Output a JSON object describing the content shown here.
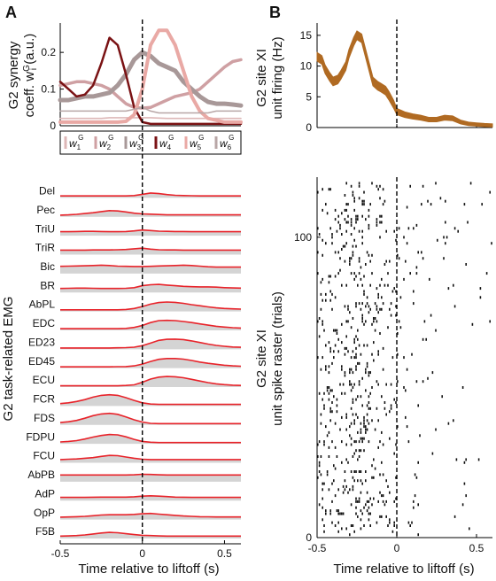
{
  "panels": {
    "a": {
      "letter": "A"
    },
    "b": {
      "letter": "B"
    }
  },
  "colors": {
    "emg_line": "#e8232a",
    "emg_fill": "#d4d4d4",
    "firing": "#b06a22",
    "raster": "#111111",
    "w1": "#ddb7b7",
    "w2": "#cfa0a3",
    "w3": "#a89898",
    "w4": "#7a1214",
    "w5": "#e9a9a5",
    "w6": "#b8a6a6"
  },
  "chart_data": [
    {
      "type": "line",
      "panel": "A-top",
      "ylabel_lines": [
        "G2 synergy",
        "coeff. w",
        "(a.u.)"
      ],
      "ylabel_sub": "G",
      "ylabel_sub2": "i",
      "xlim": [
        -0.5,
        0.6
      ],
      "ylim": [
        0,
        0.28
      ],
      "yticks": [
        "0",
        "0.1",
        "0.2"
      ],
      "ytick_values": [
        0,
        0.1,
        0.2
      ],
      "marker_x": 0,
      "series": [
        {
          "name": "w1G",
          "label_main": "w",
          "label_sub": "1",
          "label_sup": "G",
          "color_key": "w1",
          "x": [
            -0.5,
            -0.45,
            -0.4,
            -0.35,
            -0.3,
            -0.25,
            -0.2,
            -0.15,
            -0.1,
            -0.05,
            0,
            0.05,
            0.1,
            0.15,
            0.2,
            0.25,
            0.3,
            0.35,
            0.4,
            0.45,
            0.5,
            0.55,
            0.6
          ],
          "y": [
            0.02,
            0.02,
            0.02,
            0.02,
            0.02,
            0.02,
            0.022,
            0.022,
            0.022,
            0.022,
            0.022,
            0.022,
            0.021,
            0.02,
            0.02,
            0.02,
            0.02,
            0.02,
            0.02,
            0.02,
            0.02,
            0.02,
            0.02
          ]
        },
        {
          "name": "w2G",
          "label_main": "w",
          "label_sub": "2",
          "label_sup": "G",
          "color_key": "w2",
          "x": [
            -0.5,
            -0.45,
            -0.4,
            -0.35,
            -0.3,
            -0.25,
            -0.2,
            -0.15,
            -0.1,
            -0.05,
            0,
            0.05,
            0.1,
            0.15,
            0.2,
            0.25,
            0.3,
            0.35,
            0.4,
            0.45,
            0.5,
            0.55,
            0.6
          ],
          "y": [
            0.11,
            0.115,
            0.12,
            0.12,
            0.115,
            0.11,
            0.1,
            0.08,
            0.06,
            0.05,
            0.048,
            0.05,
            0.06,
            0.07,
            0.08,
            0.085,
            0.09,
            0.1,
            0.12,
            0.14,
            0.16,
            0.175,
            0.18
          ]
        },
        {
          "name": "w3G",
          "label_main": "w",
          "label_sub": "3",
          "label_sup": "G",
          "color_key": "w3",
          "x": [
            -0.5,
            -0.45,
            -0.4,
            -0.35,
            -0.3,
            -0.25,
            -0.2,
            -0.15,
            -0.1,
            -0.05,
            0,
            0.05,
            0.1,
            0.15,
            0.2,
            0.25,
            0.3,
            0.35,
            0.4,
            0.45,
            0.5,
            0.55,
            0.6
          ],
          "y": [
            0.07,
            0.07,
            0.075,
            0.08,
            0.08,
            0.085,
            0.09,
            0.11,
            0.14,
            0.18,
            0.2,
            0.19,
            0.17,
            0.16,
            0.15,
            0.12,
            0.1,
            0.08,
            0.065,
            0.06,
            0.06,
            0.058,
            0.055
          ]
        },
        {
          "name": "w4G",
          "label_main": "w",
          "label_sub": "4",
          "label_sup": "G",
          "color_key": "w4",
          "x": [
            -0.5,
            -0.45,
            -0.4,
            -0.35,
            -0.3,
            -0.25,
            -0.2,
            -0.15,
            -0.1,
            -0.05,
            0,
            0.05,
            0.1,
            0.15,
            0.2,
            0.25,
            0.3,
            0.35,
            0.4,
            0.45,
            0.5,
            0.55,
            0.6
          ],
          "y": [
            0.12,
            0.1,
            0.08,
            0.085,
            0.11,
            0.17,
            0.24,
            0.22,
            0.14,
            0.05,
            0.01,
            0.005,
            0.005,
            0.005,
            0.005,
            0.005,
            0.005,
            0.005,
            0.005,
            0.005,
            0.005,
            0.005,
            0.005
          ]
        },
        {
          "name": "w5G",
          "label_main": "w",
          "label_sub": "5",
          "label_sup": "G",
          "color_key": "w5",
          "x": [
            -0.5,
            -0.45,
            -0.4,
            -0.35,
            -0.3,
            -0.25,
            -0.2,
            -0.15,
            -0.1,
            -0.05,
            0,
            0.05,
            0.1,
            0.15,
            0.2,
            0.25,
            0.3,
            0.35,
            0.4,
            0.45,
            0.5,
            0.55,
            0.6
          ],
          "y": [
            0.01,
            0.01,
            0.01,
            0.01,
            0.01,
            0.01,
            0.01,
            0.01,
            0.012,
            0.03,
            0.1,
            0.22,
            0.26,
            0.26,
            0.22,
            0.15,
            0.08,
            0.04,
            0.02,
            0.015,
            0.01,
            0.01,
            0.01
          ]
        },
        {
          "name": "w6G",
          "label_main": "w",
          "label_sub": "6",
          "label_sup": "G",
          "color_key": "w6",
          "x": [
            -0.5,
            -0.45,
            -0.4,
            -0.35,
            -0.3,
            -0.25,
            -0.2,
            -0.15,
            -0.1,
            -0.05,
            0,
            0.05,
            0.1,
            0.15,
            0.2,
            0.25,
            0.3,
            0.35,
            0.4,
            0.45,
            0.5,
            0.55,
            0.6
          ],
          "y": [
            0.04,
            0.04,
            0.04,
            0.04,
            0.04,
            0.04,
            0.04,
            0.04,
            0.04,
            0.045,
            0.05,
            0.04,
            0.035,
            0.035,
            0.035,
            0.035,
            0.035,
            0.035,
            0.035,
            0.04,
            0.04,
            0.04,
            0.04
          ]
        }
      ]
    },
    {
      "type": "area",
      "panel": "A-bottom",
      "ylabel": "G2 task-related EMG",
      "xlabel": "Time relative to liftoff (s)",
      "xlim": [
        -0.5,
        0.6
      ],
      "xticks": [
        "-0.5",
        "0",
        "0.5"
      ],
      "xtick_values": [
        -0.5,
        0,
        0.5
      ],
      "marker_x": 0,
      "x": [
        -0.5,
        -0.45,
        -0.4,
        -0.35,
        -0.3,
        -0.25,
        -0.2,
        -0.15,
        -0.1,
        -0.05,
        0,
        0.05,
        0.1,
        0.15,
        0.2,
        0.25,
        0.3,
        0.35,
        0.4,
        0.45,
        0.5,
        0.55,
        0.6
      ],
      "muscles": [
        {
          "name": "Del",
          "y": [
            0.12,
            0.12,
            0.12,
            0.12,
            0.12,
            0.12,
            0.12,
            0.12,
            0.12,
            0.14,
            0.22,
            0.3,
            0.26,
            0.2,
            0.16,
            0.14,
            0.13,
            0.12,
            0.12,
            0.12,
            0.12,
            0.12,
            0.12
          ]
        },
        {
          "name": "Pec",
          "y": [
            0.1,
            0.12,
            0.15,
            0.2,
            0.25,
            0.32,
            0.38,
            0.36,
            0.3,
            0.22,
            0.18,
            0.16,
            0.14,
            0.12,
            0.12,
            0.12,
            0.12,
            0.12,
            0.12,
            0.12,
            0.12,
            0.12,
            0.12
          ]
        },
        {
          "name": "TriU",
          "y": [
            0.25,
            0.25,
            0.26,
            0.27,
            0.27,
            0.26,
            0.25,
            0.25,
            0.26,
            0.3,
            0.35,
            0.32,
            0.28,
            0.27,
            0.26,
            0.26,
            0.25,
            0.25,
            0.25,
            0.25,
            0.25,
            0.25,
            0.25
          ]
        },
        {
          "name": "TriR",
          "y": [
            0.28,
            0.28,
            0.28,
            0.28,
            0.29,
            0.29,
            0.29,
            0.3,
            0.32,
            0.36,
            0.4,
            0.34,
            0.3,
            0.29,
            0.29,
            0.28,
            0.28,
            0.28,
            0.28,
            0.28,
            0.28,
            0.28,
            0.28
          ]
        },
        {
          "name": "Bic",
          "y": [
            0.45,
            0.46,
            0.47,
            0.48,
            0.5,
            0.52,
            0.5,
            0.46,
            0.45,
            0.44,
            0.44,
            0.45,
            0.47,
            0.48,
            0.5,
            0.52,
            0.5,
            0.46,
            0.42,
            0.4,
            0.4,
            0.4,
            0.4
          ]
        },
        {
          "name": "BR",
          "y": [
            0.25,
            0.26,
            0.27,
            0.27,
            0.26,
            0.25,
            0.25,
            0.25,
            0.26,
            0.3,
            0.42,
            0.48,
            0.5,
            0.46,
            0.42,
            0.38,
            0.36,
            0.35,
            0.35,
            0.33,
            0.3,
            0.28,
            0.27
          ]
        },
        {
          "name": "AbPL",
          "y": [
            0.1,
            0.1,
            0.1,
            0.1,
            0.1,
            0.1,
            0.1,
            0.1,
            0.12,
            0.18,
            0.3,
            0.45,
            0.55,
            0.58,
            0.56,
            0.5,
            0.42,
            0.35,
            0.28,
            0.22,
            0.18,
            0.16,
            0.14
          ]
        },
        {
          "name": "EDC",
          "y": [
            0.1,
            0.1,
            0.1,
            0.1,
            0.1,
            0.1,
            0.1,
            0.1,
            0.12,
            0.18,
            0.3,
            0.48,
            0.6,
            0.62,
            0.6,
            0.55,
            0.48,
            0.4,
            0.32,
            0.25,
            0.2,
            0.16,
            0.14
          ]
        },
        {
          "name": "ED23",
          "y": [
            0.08,
            0.08,
            0.08,
            0.08,
            0.08,
            0.08,
            0.08,
            0.09,
            0.1,
            0.13,
            0.22,
            0.38,
            0.55,
            0.62,
            0.63,
            0.6,
            0.52,
            0.42,
            0.32,
            0.24,
            0.18,
            0.14,
            0.12
          ]
        },
        {
          "name": "ED45",
          "y": [
            0.08,
            0.08,
            0.08,
            0.08,
            0.08,
            0.08,
            0.08,
            0.09,
            0.1,
            0.14,
            0.25,
            0.42,
            0.55,
            0.6,
            0.6,
            0.56,
            0.48,
            0.38,
            0.3,
            0.24,
            0.18,
            0.14,
            0.12
          ]
        },
        {
          "name": "ECU",
          "y": [
            0.08,
            0.08,
            0.08,
            0.08,
            0.08,
            0.08,
            0.08,
            0.08,
            0.1,
            0.14,
            0.3,
            0.5,
            0.62,
            0.66,
            0.64,
            0.58,
            0.48,
            0.38,
            0.28,
            0.2,
            0.15,
            0.12,
            0.1
          ]
        },
        {
          "name": "FCR",
          "y": [
            0.15,
            0.2,
            0.28,
            0.4,
            0.55,
            0.66,
            0.7,
            0.66,
            0.52,
            0.35,
            0.2,
            0.12,
            0.1,
            0.1,
            0.1,
            0.1,
            0.1,
            0.1,
            0.1,
            0.1,
            0.1,
            0.1,
            0.1
          ]
        },
        {
          "name": "FDS",
          "y": [
            0.15,
            0.2,
            0.28,
            0.42,
            0.58,
            0.68,
            0.72,
            0.66,
            0.5,
            0.32,
            0.18,
            0.1,
            0.08,
            0.08,
            0.08,
            0.08,
            0.08,
            0.08,
            0.08,
            0.08,
            0.08,
            0.08,
            0.08
          ]
        },
        {
          "name": "FDPU",
          "y": [
            0.12,
            0.15,
            0.2,
            0.3,
            0.42,
            0.52,
            0.58,
            0.56,
            0.44,
            0.28,
            0.15,
            0.1,
            0.08,
            0.08,
            0.08,
            0.08,
            0.08,
            0.08,
            0.08,
            0.08,
            0.08,
            0.08,
            0.08
          ]
        },
        {
          "name": "FCU",
          "y": [
            0.2,
            0.22,
            0.24,
            0.28,
            0.32,
            0.4,
            0.46,
            0.44,
            0.36,
            0.28,
            0.22,
            0.2,
            0.2,
            0.2,
            0.2,
            0.2,
            0.2,
            0.2,
            0.2,
            0.2,
            0.2,
            0.2,
            0.2
          ]
        },
        {
          "name": "AbPB",
          "y": [
            0.42,
            0.42,
            0.42,
            0.42,
            0.42,
            0.42,
            0.42,
            0.42,
            0.42,
            0.43,
            0.46,
            0.45,
            0.43,
            0.42,
            0.42,
            0.42,
            0.42,
            0.42,
            0.42,
            0.42,
            0.42,
            0.42,
            0.42
          ]
        },
        {
          "name": "AdP",
          "y": [
            0.2,
            0.2,
            0.2,
            0.2,
            0.21,
            0.22,
            0.22,
            0.22,
            0.22,
            0.24,
            0.28,
            0.3,
            0.28,
            0.25,
            0.22,
            0.21,
            0.2,
            0.2,
            0.2,
            0.2,
            0.2,
            0.2,
            0.2
          ]
        },
        {
          "name": "OpP",
          "y": [
            0.15,
            0.16,
            0.18,
            0.2,
            0.24,
            0.28,
            0.3,
            0.3,
            0.3,
            0.32,
            0.36,
            0.38,
            0.34,
            0.3,
            0.26,
            0.22,
            0.2,
            0.18,
            0.17,
            0.16,
            0.16,
            0.16,
            0.16
          ]
        },
        {
          "name": "F5B",
          "y": [
            0.15,
            0.16,
            0.18,
            0.22,
            0.28,
            0.34,
            0.38,
            0.36,
            0.3,
            0.24,
            0.2,
            0.18,
            0.16,
            0.15,
            0.15,
            0.15,
            0.15,
            0.15,
            0.15,
            0.15,
            0.15,
            0.15,
            0.15
          ]
        }
      ]
    },
    {
      "type": "line",
      "panel": "B-top",
      "ylabel_lines": [
        "G2 site XI",
        "unit firing (Hz)"
      ],
      "xlim": [
        -0.5,
        0.6
      ],
      "ylim": [
        0,
        17
      ],
      "yticks": [
        "0",
        "5",
        "10",
        "15"
      ],
      "ytick_values": [
        0,
        5,
        10,
        15
      ],
      "marker_x": 0,
      "x": [
        -0.5,
        -0.47,
        -0.45,
        -0.42,
        -0.4,
        -0.37,
        -0.35,
        -0.32,
        -0.3,
        -0.27,
        -0.25,
        -0.22,
        -0.2,
        -0.17,
        -0.15,
        -0.12,
        -0.1,
        -0.07,
        -0.05,
        -0.02,
        0,
        0.03,
        0.05,
        0.1,
        0.15,
        0.2,
        0.25,
        0.3,
        0.35,
        0.4,
        0.45,
        0.5,
        0.55,
        0.6
      ],
      "y": [
        11.5,
        11,
        9.5,
        8.2,
        7.5,
        7.8,
        8.6,
        10,
        12,
        14,
        15,
        14.5,
        12.5,
        9.5,
        7.5,
        6.8,
        6.5,
        6,
        5.2,
        3.8,
        2.6,
        2.3,
        2.1,
        1.8,
        1.6,
        1.3,
        1.3,
        1.6,
        1.5,
        0.9,
        0.6,
        0.5,
        0.4,
        0.35
      ],
      "band": 0.7
    },
    {
      "type": "scatter",
      "panel": "B-bottom",
      "ylabel_lines": [
        "G2 site XI",
        "unit spike raster (trials)"
      ],
      "xlabel": "Time relative to liftoff (s)",
      "xlim": [
        -0.5,
        0.6
      ],
      "ylim": [
        0,
        120
      ],
      "xticks": [
        "-0.5",
        "0",
        "0.5"
      ],
      "xtick_values": [
        -0.5,
        0,
        0.5
      ],
      "yticks": [
        "0",
        "100"
      ],
      "ytick_values": [
        0,
        100
      ],
      "marker_x": 0,
      "trials": 118,
      "rate_profile_note": "spike density follows unit firing rate"
    }
  ]
}
